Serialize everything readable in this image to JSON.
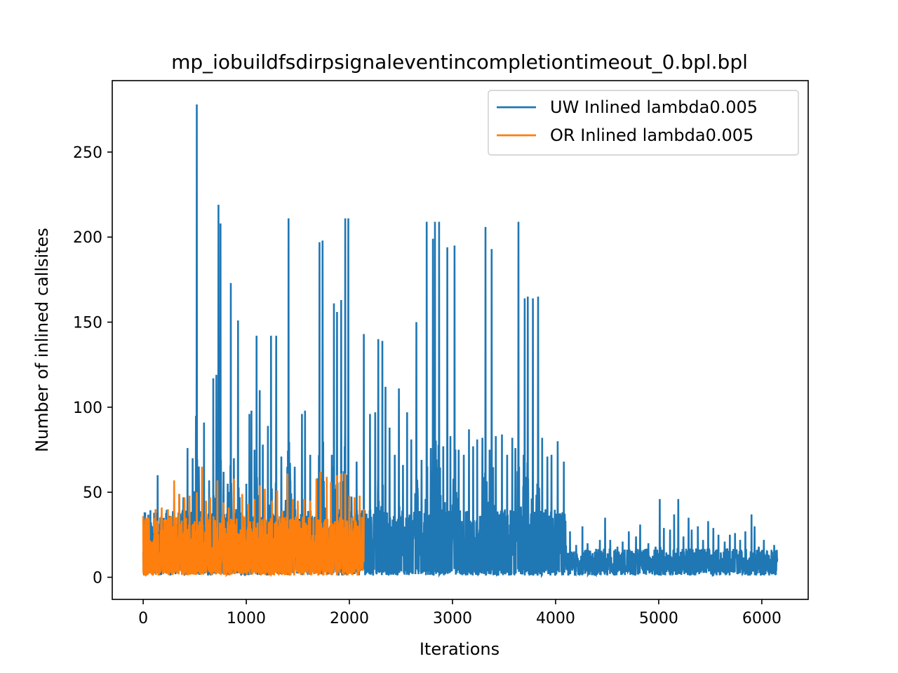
{
  "chart_data": {
    "type": "line",
    "title": "mp_iobuildfsdirpsignaleventincompletiontimeout_0.bpl.bpl",
    "xlabel": "Iterations",
    "ylabel": "Number of inlined callsites",
    "xlim": [
      -300,
      6450
    ],
    "ylim": [
      -13,
      292
    ],
    "xticks": [
      0,
      1000,
      2000,
      3000,
      4000,
      5000,
      6000
    ],
    "yticks": [
      0,
      50,
      100,
      150,
      200,
      250
    ],
    "grid": false,
    "legend_position": "top-right",
    "series": [
      {
        "name": "UW Inlined lambda0.005",
        "color": "#1f77b4",
        "x_range": [
          0,
          6150
        ],
        "peaks": [
          [
            140,
            60
          ],
          [
            300,
            45
          ],
          [
            350,
            49
          ],
          [
            390,
            47
          ],
          [
            430,
            76
          ],
          [
            480,
            70
          ],
          [
            520,
            278
          ],
          [
            590,
            91
          ],
          [
            640,
            57
          ],
          [
            680,
            117
          ],
          [
            710,
            119
          ],
          [
            730,
            219
          ],
          [
            750,
            208
          ],
          [
            780,
            62
          ],
          [
            820,
            55
          ],
          [
            850,
            173
          ],
          [
            880,
            70
          ],
          [
            920,
            151
          ],
          [
            1000,
            55
          ],
          [
            1030,
            96
          ],
          [
            1050,
            98
          ],
          [
            1080,
            75
          ],
          [
            1100,
            142
          ],
          [
            1130,
            110
          ],
          [
            1160,
            78
          ],
          [
            1210,
            89
          ],
          [
            1240,
            142
          ],
          [
            1290,
            142
          ],
          [
            1340,
            71
          ],
          [
            1410,
            211
          ],
          [
            1470,
            65
          ],
          [
            1540,
            96
          ],
          [
            1570,
            98
          ],
          [
            1620,
            72
          ],
          [
            1710,
            197
          ],
          [
            1740,
            198
          ],
          [
            1830,
            72
          ],
          [
            1850,
            161
          ],
          [
            1880,
            156
          ],
          [
            1920,
            163
          ],
          [
            1960,
            211
          ],
          [
            1990,
            211
          ],
          [
            2070,
            68
          ],
          [
            2140,
            143
          ],
          [
            2200,
            96
          ],
          [
            2250,
            97
          ],
          [
            2280,
            140
          ],
          [
            2320,
            139
          ],
          [
            2350,
            112
          ],
          [
            2390,
            88
          ],
          [
            2440,
            72
          ],
          [
            2480,
            111
          ],
          [
            2520,
            66
          ],
          [
            2560,
            97
          ],
          [
            2600,
            81
          ],
          [
            2650,
            150
          ],
          [
            2700,
            69
          ],
          [
            2750,
            209
          ],
          [
            2790,
            76
          ],
          [
            2810,
            199
          ],
          [
            2830,
            209
          ],
          [
            2870,
            209
          ],
          [
            2910,
            77
          ],
          [
            2950,
            194
          ],
          [
            2980,
            83
          ],
          [
            3020,
            195
          ],
          [
            3060,
            75
          ],
          [
            3110,
            72
          ],
          [
            3160,
            87
          ],
          [
            3200,
            77
          ],
          [
            3240,
            81
          ],
          [
            3290,
            82
          ],
          [
            3320,
            206
          ],
          [
            3360,
            75
          ],
          [
            3380,
            193
          ],
          [
            3420,
            83
          ],
          [
            3480,
            84
          ],
          [
            3530,
            72
          ],
          [
            3580,
            82
          ],
          [
            3610,
            76
          ],
          [
            3640,
            209
          ],
          [
            3690,
            72
          ],
          [
            3700,
            164
          ],
          [
            3730,
            165
          ],
          [
            3780,
            164
          ],
          [
            3830,
            165
          ],
          [
            3870,
            82
          ],
          [
            3920,
            71
          ],
          [
            3960,
            72
          ],
          [
            4020,
            80
          ],
          [
            4080,
            68
          ],
          [
            4140,
            27
          ],
          [
            4200,
            19
          ],
          [
            4260,
            30
          ],
          [
            4310,
            20
          ],
          [
            4380,
            15
          ],
          [
            4430,
            22
          ],
          [
            4480,
            35
          ],
          [
            4530,
            22
          ],
          [
            4600,
            18
          ],
          [
            4650,
            21
          ],
          [
            4710,
            27
          ],
          [
            4780,
            24
          ],
          [
            4820,
            31
          ],
          [
            4900,
            20
          ],
          [
            4970,
            18
          ],
          [
            5010,
            46
          ],
          [
            5050,
            29
          ],
          [
            5110,
            28
          ],
          [
            5150,
            37
          ],
          [
            5190,
            46
          ],
          [
            5240,
            24
          ],
          [
            5290,
            35
          ],
          [
            5320,
            28
          ],
          [
            5380,
            30
          ],
          [
            5430,
            22
          ],
          [
            5480,
            33
          ],
          [
            5530,
            29
          ],
          [
            5580,
            25
          ],
          [
            5640,
            21
          ],
          [
            5690,
            25
          ],
          [
            5740,
            26
          ],
          [
            5790,
            22
          ],
          [
            5840,
            27
          ],
          [
            5900,
            37
          ],
          [
            5930,
            30
          ],
          [
            5970,
            18
          ],
          [
            6020,
            22
          ],
          [
            6070,
            13
          ],
          [
            6120,
            19
          ],
          [
            6150,
            11
          ]
        ]
      },
      {
        "name": "OR Inlined lambda0.005",
        "color": "#ff7f0e",
        "x_range": [
          0,
          2140
        ],
        "peaks": [
          [
            0,
            36
          ],
          [
            50,
            35
          ],
          [
            120,
            40
          ],
          [
            180,
            41
          ],
          [
            240,
            40
          ],
          [
            300,
            57
          ],
          [
            350,
            49
          ],
          [
            400,
            47
          ],
          [
            450,
            48
          ],
          [
            520,
            50
          ],
          [
            570,
            65
          ],
          [
            610,
            45
          ],
          [
            650,
            47
          ],
          [
            720,
            57
          ],
          [
            780,
            44
          ],
          [
            830,
            41
          ],
          [
            880,
            58
          ],
          [
            960,
            49
          ],
          [
            1020,
            43
          ],
          [
            1080,
            46
          ],
          [
            1130,
            54
          ],
          [
            1180,
            52
          ],
          [
            1250,
            45
          ],
          [
            1300,
            51
          ],
          [
            1350,
            39
          ],
          [
            1400,
            61
          ],
          [
            1450,
            46
          ],
          [
            1500,
            45
          ],
          [
            1560,
            46
          ],
          [
            1620,
            45
          ],
          [
            1680,
            58
          ],
          [
            1720,
            62
          ],
          [
            1780,
            59
          ],
          [
            1820,
            56
          ],
          [
            1880,
            60
          ],
          [
            1920,
            61
          ],
          [
            1960,
            61
          ],
          [
            2000,
            48
          ],
          [
            2050,
            47
          ],
          [
            2100,
            48
          ],
          [
            2140,
            40
          ]
        ]
      }
    ]
  }
}
